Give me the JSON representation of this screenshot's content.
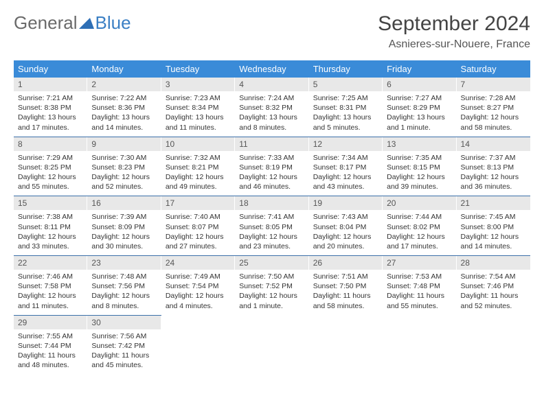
{
  "brand": {
    "general": "General",
    "blue": "Blue"
  },
  "title": "September 2024",
  "location": "Asnieres-sur-Nouere, France",
  "colors": {
    "header_bg": "#3a8bd8",
    "header_text": "#ffffff",
    "day_num_bg": "#e8e8e8",
    "row_divider": "#3a6fa8",
    "brand_blue": "#3a7fc4",
    "brand_gray": "#6a6a6a",
    "body_text": "#333333"
  },
  "typography": {
    "month_title_fontsize": 30,
    "location_fontsize": 16,
    "dayhead_fontsize": 13,
    "daynum_fontsize": 12,
    "body_fontsize": 10.5
  },
  "day_headers": [
    "Sunday",
    "Monday",
    "Tuesday",
    "Wednesday",
    "Thursday",
    "Friday",
    "Saturday"
  ],
  "weeks": [
    [
      {
        "n": "1",
        "sunrise": "Sunrise: 7:21 AM",
        "sunset": "Sunset: 8:38 PM",
        "daylight1": "Daylight: 13 hours",
        "daylight2": "and 17 minutes."
      },
      {
        "n": "2",
        "sunrise": "Sunrise: 7:22 AM",
        "sunset": "Sunset: 8:36 PM",
        "daylight1": "Daylight: 13 hours",
        "daylight2": "and 14 minutes."
      },
      {
        "n": "3",
        "sunrise": "Sunrise: 7:23 AM",
        "sunset": "Sunset: 8:34 PM",
        "daylight1": "Daylight: 13 hours",
        "daylight2": "and 11 minutes."
      },
      {
        "n": "4",
        "sunrise": "Sunrise: 7:24 AM",
        "sunset": "Sunset: 8:32 PM",
        "daylight1": "Daylight: 13 hours",
        "daylight2": "and 8 minutes."
      },
      {
        "n": "5",
        "sunrise": "Sunrise: 7:25 AM",
        "sunset": "Sunset: 8:31 PM",
        "daylight1": "Daylight: 13 hours",
        "daylight2": "and 5 minutes."
      },
      {
        "n": "6",
        "sunrise": "Sunrise: 7:27 AM",
        "sunset": "Sunset: 8:29 PM",
        "daylight1": "Daylight: 13 hours",
        "daylight2": "and 1 minute."
      },
      {
        "n": "7",
        "sunrise": "Sunrise: 7:28 AM",
        "sunset": "Sunset: 8:27 PM",
        "daylight1": "Daylight: 12 hours",
        "daylight2": "and 58 minutes."
      }
    ],
    [
      {
        "n": "8",
        "sunrise": "Sunrise: 7:29 AM",
        "sunset": "Sunset: 8:25 PM",
        "daylight1": "Daylight: 12 hours",
        "daylight2": "and 55 minutes."
      },
      {
        "n": "9",
        "sunrise": "Sunrise: 7:30 AM",
        "sunset": "Sunset: 8:23 PM",
        "daylight1": "Daylight: 12 hours",
        "daylight2": "and 52 minutes."
      },
      {
        "n": "10",
        "sunrise": "Sunrise: 7:32 AM",
        "sunset": "Sunset: 8:21 PM",
        "daylight1": "Daylight: 12 hours",
        "daylight2": "and 49 minutes."
      },
      {
        "n": "11",
        "sunrise": "Sunrise: 7:33 AM",
        "sunset": "Sunset: 8:19 PM",
        "daylight1": "Daylight: 12 hours",
        "daylight2": "and 46 minutes."
      },
      {
        "n": "12",
        "sunrise": "Sunrise: 7:34 AM",
        "sunset": "Sunset: 8:17 PM",
        "daylight1": "Daylight: 12 hours",
        "daylight2": "and 43 minutes."
      },
      {
        "n": "13",
        "sunrise": "Sunrise: 7:35 AM",
        "sunset": "Sunset: 8:15 PM",
        "daylight1": "Daylight: 12 hours",
        "daylight2": "and 39 minutes."
      },
      {
        "n": "14",
        "sunrise": "Sunrise: 7:37 AM",
        "sunset": "Sunset: 8:13 PM",
        "daylight1": "Daylight: 12 hours",
        "daylight2": "and 36 minutes."
      }
    ],
    [
      {
        "n": "15",
        "sunrise": "Sunrise: 7:38 AM",
        "sunset": "Sunset: 8:11 PM",
        "daylight1": "Daylight: 12 hours",
        "daylight2": "and 33 minutes."
      },
      {
        "n": "16",
        "sunrise": "Sunrise: 7:39 AM",
        "sunset": "Sunset: 8:09 PM",
        "daylight1": "Daylight: 12 hours",
        "daylight2": "and 30 minutes."
      },
      {
        "n": "17",
        "sunrise": "Sunrise: 7:40 AM",
        "sunset": "Sunset: 8:07 PM",
        "daylight1": "Daylight: 12 hours",
        "daylight2": "and 27 minutes."
      },
      {
        "n": "18",
        "sunrise": "Sunrise: 7:41 AM",
        "sunset": "Sunset: 8:05 PM",
        "daylight1": "Daylight: 12 hours",
        "daylight2": "and 23 minutes."
      },
      {
        "n": "19",
        "sunrise": "Sunrise: 7:43 AM",
        "sunset": "Sunset: 8:04 PM",
        "daylight1": "Daylight: 12 hours",
        "daylight2": "and 20 minutes."
      },
      {
        "n": "20",
        "sunrise": "Sunrise: 7:44 AM",
        "sunset": "Sunset: 8:02 PM",
        "daylight1": "Daylight: 12 hours",
        "daylight2": "and 17 minutes."
      },
      {
        "n": "21",
        "sunrise": "Sunrise: 7:45 AM",
        "sunset": "Sunset: 8:00 PM",
        "daylight1": "Daylight: 12 hours",
        "daylight2": "and 14 minutes."
      }
    ],
    [
      {
        "n": "22",
        "sunrise": "Sunrise: 7:46 AM",
        "sunset": "Sunset: 7:58 PM",
        "daylight1": "Daylight: 12 hours",
        "daylight2": "and 11 minutes."
      },
      {
        "n": "23",
        "sunrise": "Sunrise: 7:48 AM",
        "sunset": "Sunset: 7:56 PM",
        "daylight1": "Daylight: 12 hours",
        "daylight2": "and 8 minutes."
      },
      {
        "n": "24",
        "sunrise": "Sunrise: 7:49 AM",
        "sunset": "Sunset: 7:54 PM",
        "daylight1": "Daylight: 12 hours",
        "daylight2": "and 4 minutes."
      },
      {
        "n": "25",
        "sunrise": "Sunrise: 7:50 AM",
        "sunset": "Sunset: 7:52 PM",
        "daylight1": "Daylight: 12 hours",
        "daylight2": "and 1 minute."
      },
      {
        "n": "26",
        "sunrise": "Sunrise: 7:51 AM",
        "sunset": "Sunset: 7:50 PM",
        "daylight1": "Daylight: 11 hours",
        "daylight2": "and 58 minutes."
      },
      {
        "n": "27",
        "sunrise": "Sunrise: 7:53 AM",
        "sunset": "Sunset: 7:48 PM",
        "daylight1": "Daylight: 11 hours",
        "daylight2": "and 55 minutes."
      },
      {
        "n": "28",
        "sunrise": "Sunrise: 7:54 AM",
        "sunset": "Sunset: 7:46 PM",
        "daylight1": "Daylight: 11 hours",
        "daylight2": "and 52 minutes."
      }
    ],
    [
      {
        "n": "29",
        "sunrise": "Sunrise: 7:55 AM",
        "sunset": "Sunset: 7:44 PM",
        "daylight1": "Daylight: 11 hours",
        "daylight2": "and 48 minutes."
      },
      {
        "n": "30",
        "sunrise": "Sunrise: 7:56 AM",
        "sunset": "Sunset: 7:42 PM",
        "daylight1": "Daylight: 11 hours",
        "daylight2": "and 45 minutes."
      },
      null,
      null,
      null,
      null,
      null
    ]
  ]
}
